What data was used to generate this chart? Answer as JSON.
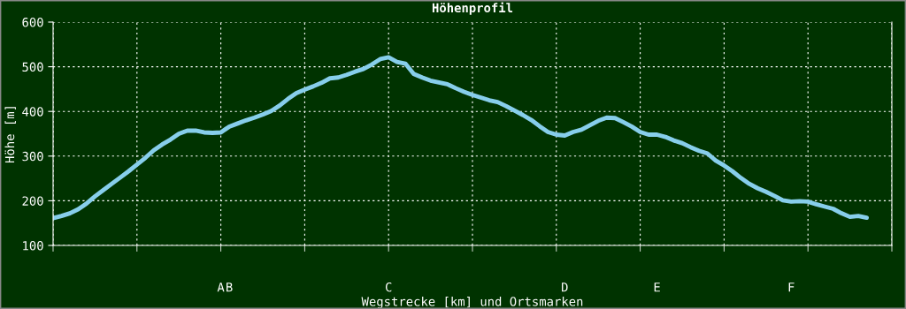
{
  "chart_data": {
    "type": "line",
    "title": "Höhenprofil",
    "xlabel": "Wegstrecke [km] und Ortsmarken",
    "ylabel": "Höhe [m]",
    "categories": [
      null,
      null,
      null,
      null,
      null,
      null,
      null,
      null,
      null,
      null,
      null,
      null,
      null,
      null,
      null,
      null,
      null,
      null,
      null,
      null,
      "A",
      "B",
      null,
      null,
      null,
      null,
      null,
      null,
      null,
      null,
      null,
      null,
      null,
      null,
      null,
      null,
      null,
      null,
      null,
      null,
      "C",
      null,
      null,
      null,
      null,
      null,
      null,
      null,
      null,
      null,
      null,
      null,
      null,
      null,
      null,
      null,
      null,
      null,
      null,
      null,
      null,
      "D",
      null,
      null,
      null,
      null,
      null,
      null,
      null,
      null,
      null,
      null,
      "E",
      null,
      null,
      null,
      null,
      null,
      null,
      null,
      null,
      null,
      null,
      null,
      null,
      null,
      null,
      null,
      "F",
      null,
      null,
      null,
      null,
      null,
      null,
      null,
      null,
      null,
      null,
      null,
      null
    ],
    "series": [
      {
        "color": "#87ceeb",
        "values": [
          161,
          166,
          172,
          181,
          194,
          210,
          224,
          238,
          252,
          266,
          281,
          296,
          313,
          326,
          337,
          350,
          357,
          357,
          353,
          352,
          353,
          366,
          373,
          380,
          386,
          393,
          401,
          413,
          428,
          441,
          449,
          456,
          464,
          474,
          476,
          482,
          489,
          495,
          505,
          517,
          521,
          511,
          507,
          484,
          476,
          469,
          465,
          461,
          452,
          444,
          437,
          431,
          425,
          421,
          412,
          402,
          392,
          381,
          367,
          354,
          348,
          346,
          354,
          359,
          369,
          379,
          386,
          385,
          376,
          366,
          354,
          348,
          348,
          343,
          335,
          329,
          320,
          312,
          306,
          290,
          279,
          266,
          251,
          238,
          228,
          220,
          211,
          201,
          198,
          199,
          198,
          192,
          187,
          182,
          172,
          164,
          166,
          162,
          null,
          null,
          null
        ]
      }
    ],
    "ylim": [
      100,
      600
    ],
    "yticks": [
      100,
      200,
      300,
      400,
      500,
      600
    ],
    "grid": true,
    "marker": "none",
    "line_style": "solid"
  }
}
